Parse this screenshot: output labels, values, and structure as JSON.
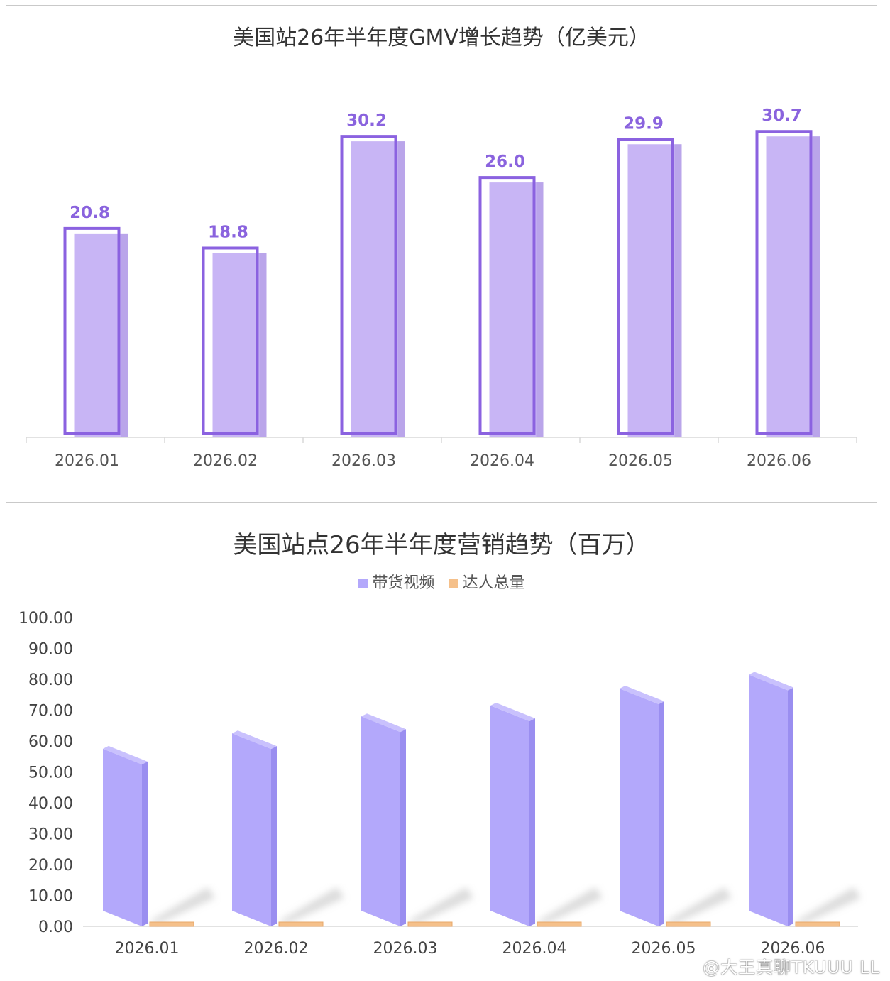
{
  "chart_data": [
    {
      "type": "bar",
      "title": "美国站26年半年度GMV增长趋势（亿美元）",
      "categories": [
        "2026.01",
        "2026.02",
        "2026.03",
        "2026.04",
        "2026.05",
        "2026.06"
      ],
      "values": [
        20.8,
        18.8,
        30.2,
        26.0,
        29.9,
        30.7
      ],
      "value_labels": [
        "20.8",
        "18.8",
        "30.2",
        "26.0",
        "29.9",
        "30.7"
      ],
      "ylim": [
        0,
        32.6
      ],
      "grid": false,
      "colors": {
        "bar": "#c8b5f5",
        "bar_side": "#b49ee6",
        "outline": "#8b62e0",
        "label": "#8a63de",
        "axis": "#d9d9d9"
      }
    },
    {
      "type": "bar",
      "title": "美国站点26年半年度营销趋势（百万）",
      "categories": [
        "2026.01",
        "2026.02",
        "2026.03",
        "2026.04",
        "2026.05",
        "2026.06"
      ],
      "series": [
        {
          "name": "带货视频",
          "values": [
            57.5,
            62.5,
            68.0,
            71.5,
            77.0,
            81.5
          ],
          "color": "#b3a8fb"
        },
        {
          "name": "达人总量",
          "values": [
            1.2,
            1.3,
            1.3,
            1.3,
            1.3,
            1.3
          ],
          "color": "#f5c08a"
        }
      ],
      "yticks": [
        "100.00",
        "90.00",
        "80.00",
        "70.00",
        "60.00",
        "50.00",
        "40.00",
        "30.00",
        "20.00",
        "10.00",
        "0.00"
      ],
      "ylim": [
        0,
        100
      ],
      "legend_position": "top",
      "grid": false
    }
  ],
  "watermark": "@大王真聊TKUUU LL"
}
